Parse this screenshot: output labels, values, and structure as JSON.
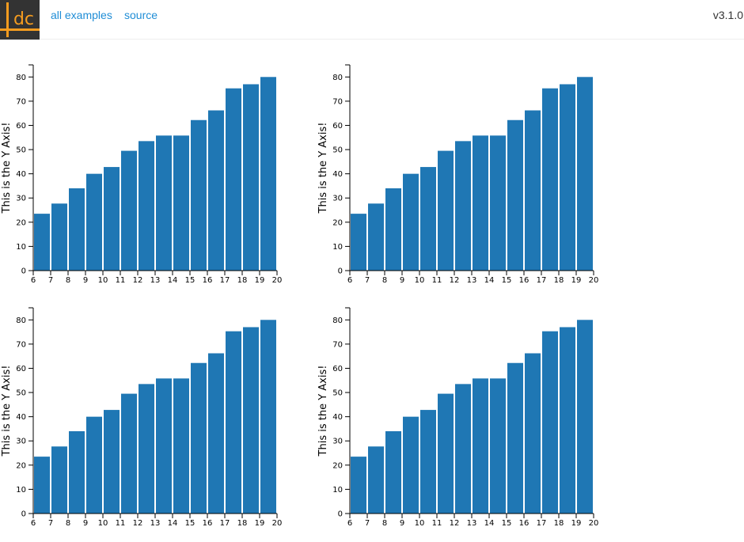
{
  "header": {
    "logo_text": "dc",
    "nav": [
      {
        "label": "all examples"
      },
      {
        "label": "source"
      }
    ],
    "version": "v3.1.0"
  },
  "colors": {
    "bar": "#1f77b4",
    "link": "#1f8dd6",
    "logo_bg": "#333333",
    "logo_fg": "#f59c1f"
  },
  "chart_data": [
    {
      "type": "bar",
      "categories": [
        6,
        7,
        8,
        9,
        10,
        11,
        12,
        13,
        14,
        15,
        16,
        17,
        18,
        19
      ],
      "values": [
        23.5,
        27.7,
        34.0,
        40.0,
        42.8,
        49.5,
        53.5,
        55.8,
        55.8,
        62.2,
        66.2,
        75.3,
        77.0,
        80.0
      ],
      "title": "",
      "xlabel": "",
      "ylabel": "This is the Y Axis!",
      "xlim": [
        6,
        20
      ],
      "ylim": [
        0,
        85
      ],
      "xticks": [
        6,
        7,
        8,
        9,
        10,
        11,
        12,
        13,
        14,
        15,
        16,
        17,
        18,
        19,
        20
      ],
      "yticks": [
        0,
        10,
        20,
        30,
        40,
        50,
        60,
        70,
        80
      ],
      "grid": false,
      "legend": "none"
    },
    {
      "type": "bar",
      "categories": [
        6,
        7,
        8,
        9,
        10,
        11,
        12,
        13,
        14,
        15,
        16,
        17,
        18,
        19
      ],
      "values": [
        23.5,
        27.7,
        34.0,
        40.0,
        42.8,
        49.5,
        53.5,
        55.8,
        55.8,
        62.2,
        66.2,
        75.3,
        77.0,
        80.0
      ],
      "title": "",
      "xlabel": "",
      "ylabel": "This is the Y Axis!",
      "xlim": [
        6,
        20
      ],
      "ylim": [
        0,
        85
      ],
      "xticks": [
        6,
        7,
        8,
        9,
        10,
        11,
        12,
        13,
        14,
        15,
        16,
        17,
        18,
        19,
        20
      ],
      "yticks": [
        0,
        10,
        20,
        30,
        40,
        50,
        60,
        70,
        80
      ],
      "grid": false,
      "legend": "none"
    },
    {
      "type": "bar",
      "categories": [
        6,
        7,
        8,
        9,
        10,
        11,
        12,
        13,
        14,
        15,
        16,
        17,
        18,
        19
      ],
      "values": [
        23.5,
        27.7,
        34.0,
        40.0,
        42.8,
        49.5,
        53.5,
        55.8,
        55.8,
        62.2,
        66.2,
        75.3,
        77.0,
        80.0
      ],
      "title": "",
      "xlabel": "",
      "ylabel": "This is the Y Axis!",
      "xlim": [
        6,
        20
      ],
      "ylim": [
        0,
        85
      ],
      "xticks": [
        6,
        7,
        8,
        9,
        10,
        11,
        12,
        13,
        14,
        15,
        16,
        17,
        18,
        19,
        20
      ],
      "yticks": [
        0,
        10,
        20,
        30,
        40,
        50,
        60,
        70,
        80
      ],
      "grid": false,
      "legend": "none"
    },
    {
      "type": "bar",
      "categories": [
        6,
        7,
        8,
        9,
        10,
        11,
        12,
        13,
        14,
        15,
        16,
        17,
        18,
        19
      ],
      "values": [
        23.5,
        27.7,
        34.0,
        40.0,
        42.8,
        49.5,
        53.5,
        55.8,
        55.8,
        62.2,
        66.2,
        75.3,
        77.0,
        80.0
      ],
      "title": "",
      "xlabel": "",
      "ylabel": "This is the Y Axis!",
      "xlim": [
        6,
        20
      ],
      "ylim": [
        0,
        85
      ],
      "xticks": [
        6,
        7,
        8,
        9,
        10,
        11,
        12,
        13,
        14,
        15,
        16,
        17,
        18,
        19,
        20
      ],
      "yticks": [
        0,
        10,
        20,
        30,
        40,
        50,
        60,
        70,
        80
      ],
      "grid": false,
      "legend": "none"
    }
  ]
}
